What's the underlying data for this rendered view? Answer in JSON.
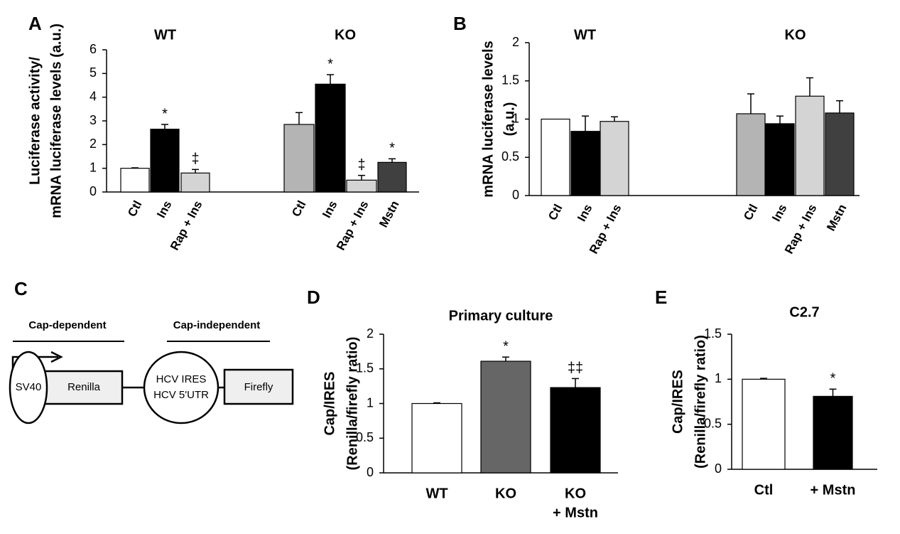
{
  "chart_data": [
    {
      "type": "bar",
      "label": "A",
      "ylabel": [
        "Luciferase activity/",
        "mRNA luciferase levels (a.u.)"
      ],
      "ylim": [
        0,
        6
      ],
      "yticks": [
        0,
        1,
        2,
        3,
        4,
        5,
        6
      ],
      "groups": [
        {
          "name": "WT",
          "categories": [
            "Ctl",
            "Ins",
            "Rap + Ins"
          ],
          "values": [
            1.0,
            2.65,
            0.8
          ],
          "errors": [
            0.02,
            0.2,
            0.15
          ],
          "colors": [
            "#ffffff",
            "#000000",
            "#d4d4d4"
          ],
          "annotations": [
            null,
            "*",
            "‡"
          ]
        },
        {
          "name": "KO",
          "categories": [
            "Ctl",
            "Ins",
            "Rap + Ins",
            "Mstn"
          ],
          "values": [
            2.85,
            4.55,
            0.5,
            1.25
          ],
          "errors": [
            0.5,
            0.4,
            0.2,
            0.15
          ],
          "colors": [
            "#b4b4b4",
            "#000000",
            "#d4d4d4",
            "#404040"
          ],
          "annotations": [
            null,
            "*",
            "‡",
            "*"
          ]
        }
      ]
    },
    {
      "type": "bar",
      "label": "B",
      "ylabel": [
        "mRNA luciferase levels",
        "(a.u.)"
      ],
      "ylim": [
        0,
        2
      ],
      "yticks": [
        0,
        0.5,
        1,
        1.5,
        2
      ],
      "groups": [
        {
          "name": "WT",
          "categories": [
            "Ctl",
            "Ins",
            "Rap + Ins"
          ],
          "values": [
            1.0,
            0.84,
            0.97
          ],
          "errors": [
            0.0,
            0.2,
            0.06
          ],
          "colors": [
            "#ffffff",
            "#000000",
            "#d4d4d4"
          ]
        },
        {
          "name": "KO",
          "categories": [
            "Ctl",
            "Ins",
            "Rap + Ins",
            "Mstn"
          ],
          "values": [
            1.07,
            0.94,
            1.3,
            1.08
          ],
          "errors": [
            0.26,
            0.1,
            0.24,
            0.16
          ],
          "colors": [
            "#b4b4b4",
            "#000000",
            "#d4d4d4",
            "#404040"
          ]
        }
      ]
    },
    {
      "type": "bar",
      "label": "D",
      "title": "Primary culture",
      "ylabel": [
        "Cap/IRES",
        "(Renilla/firefly ratio)"
      ],
      "ylim": [
        0,
        2
      ],
      "yticks": [
        0,
        0.5,
        1,
        1.5,
        2
      ],
      "groups": [
        {
          "categories": [
            [
              "WT"
            ],
            [
              "KO"
            ],
            [
              "KO",
              "+ Mstn"
            ]
          ],
          "values": [
            1.0,
            1.61,
            1.23
          ],
          "errors": [
            0.01,
            0.06,
            0.13
          ],
          "colors": [
            "#ffffff",
            "#666666",
            "#000000"
          ],
          "annotations": [
            null,
            "*",
            "‡‡"
          ]
        }
      ]
    },
    {
      "type": "bar",
      "label": "E",
      "title": "C2.7",
      "ylabel": [
        "Cap/IRES",
        "(Renilla/firefly ratio)"
      ],
      "ylim": [
        0,
        1.5
      ],
      "yticks": [
        0,
        0.5,
        1,
        1.5
      ],
      "groups": [
        {
          "categories": [
            [
              "Ctl"
            ],
            [
              "+ Mstn"
            ]
          ],
          "values": [
            1.0,
            0.81
          ],
          "errors": [
            0.01,
            0.08
          ],
          "colors": [
            "#ffffff",
            "#000000"
          ],
          "annotations": [
            null,
            "*"
          ]
        }
      ]
    }
  ],
  "diagram": {
    "label": "C",
    "cap_dependent": "Cap-dependent",
    "cap_independent": "Cap-independent",
    "promoter": "SV40",
    "reporter1": "Renilla",
    "ires": [
      "HCV IRES",
      "HCV 5'UTR"
    ],
    "reporter2": "Firefly"
  }
}
